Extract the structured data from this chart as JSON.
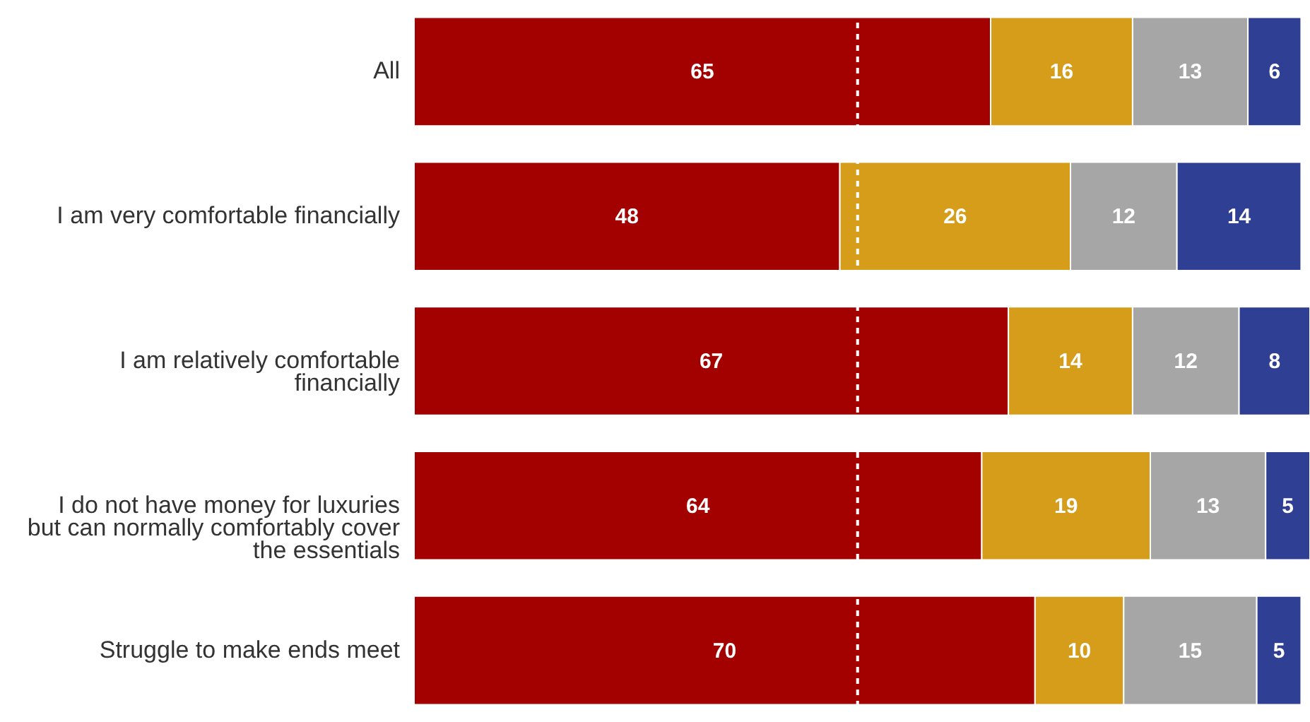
{
  "chart_data": {
    "type": "bar",
    "orientation": "horizontal",
    "stacked": true,
    "data_labels": true,
    "tick_labels": "y",
    "xlim": [
      0,
      101
    ],
    "categories": [
      "All",
      "I am very comfortable financially",
      "I am relatively comfortable financially",
      "I do not have money for luxuries but can normally comfortably cover the essentials",
      "Struggle to make ends meet"
    ],
    "series": [
      {
        "color": "#a30000",
        "values": [
          65,
          48,
          67,
          64,
          70
        ]
      },
      {
        "color": "#d69d1a",
        "values": [
          16,
          26,
          14,
          19,
          10
        ]
      },
      {
        "color": "#a6a6a6",
        "values": [
          13,
          12,
          12,
          13,
          15
        ]
      },
      {
        "color": "#2e3f94",
        "values": [
          6,
          14,
          8,
          5,
          5
        ]
      }
    ],
    "ref_lines": [
      {
        "axis": "x",
        "value": 50,
        "color": "#ffffff",
        "line_style": "dashed"
      }
    ]
  }
}
